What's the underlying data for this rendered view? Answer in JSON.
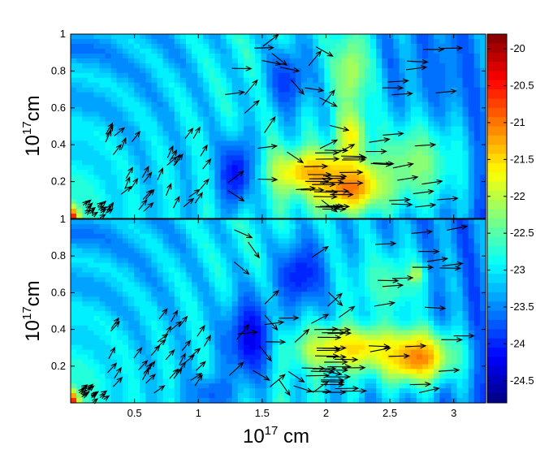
{
  "chart_data": {
    "type": "heatmap",
    "panels": [
      {
        "name": "top",
        "xlim": [
          0,
          3.25
        ],
        "ylim": [
          0,
          1
        ],
        "ylabel": "10^17cm",
        "ytick_labels": [
          "0.2",
          "0.4",
          "0.6",
          "0.8",
          "1"
        ],
        "yticks": [
          0.2,
          0.4,
          0.6,
          0.8,
          1.0
        ],
        "hotspots": [
          {
            "x": 2.2,
            "y": 0.18,
            "peak": -20.6,
            "sx": 0.28,
            "sy": 0.14
          },
          {
            "x": 1.9,
            "y": 0.25,
            "peak": -21.2,
            "sx": 0.35,
            "sy": 0.12
          },
          {
            "x": 2.2,
            "y": 0.45,
            "peak": -21.5,
            "sx": 0.12,
            "sy": 0.15
          },
          {
            "x": 2.7,
            "y": 0.3,
            "peak": -22.2,
            "sx": 0.35,
            "sy": 0.25
          },
          {
            "x": 2.2,
            "y": 0.8,
            "peak": -22.0,
            "sx": 0.15,
            "sy": 0.25
          }
        ],
        "cold_spots": [
          {
            "x": 1.3,
            "y": 0.25,
            "depth": -24.3,
            "sx": 0.15,
            "sy": 0.2
          },
          {
            "x": 1.7,
            "y": 0.75,
            "depth": -24.0,
            "sx": 0.18,
            "sy": 0.2
          },
          {
            "x": 2.9,
            "y": 0.8,
            "depth": -23.6,
            "sx": 0.2,
            "sy": 0.2
          }
        ]
      },
      {
        "name": "bottom",
        "xlim": [
          0,
          3.25
        ],
        "ylim": [
          0,
          1
        ],
        "ylabel": "10^17cm",
        "ytick_labels": [
          "0.2",
          "0.4",
          "0.6",
          "0.8",
          "1"
        ],
        "yticks": [
          0.2,
          0.4,
          0.6,
          0.8,
          1.0
        ],
        "hotspots": [
          {
            "x": 2.7,
            "y": 0.25,
            "peak": -20.8,
            "sx": 0.3,
            "sy": 0.15
          },
          {
            "x": 2.2,
            "y": 0.3,
            "peak": -21.4,
            "sx": 0.45,
            "sy": 0.12
          },
          {
            "x": 2.7,
            "y": 0.7,
            "peak": -21.3,
            "sx": 0.06,
            "sy": 0.05
          },
          {
            "x": 2.5,
            "y": 0.65,
            "peak": -22.5,
            "sx": 0.3,
            "sy": 0.2
          }
        ],
        "cold_spots": [
          {
            "x": 1.4,
            "y": 0.35,
            "depth": -24.4,
            "sx": 0.2,
            "sy": 0.25
          },
          {
            "x": 1.8,
            "y": 0.7,
            "depth": -24.2,
            "sx": 0.2,
            "sy": 0.2
          },
          {
            "x": 1.1,
            "y": 0.05,
            "depth": -23.8,
            "sx": 0.2,
            "sy": 0.1
          }
        ]
      }
    ],
    "xlabel": "10^17 cm",
    "xticks": [
      0.5,
      1,
      1.5,
      2,
      2.5,
      3
    ],
    "xtick_labels": [
      "0.5",
      "1",
      "1.5",
      "2",
      "2.5",
      "3"
    ],
    "colorbar": {
      "range": [
        -24.8,
        -19.8
      ],
      "ticks": [
        -20,
        -20.5,
        -21,
        -21.5,
        -22,
        -22.5,
        -23,
        -23.5,
        -24,
        -24.5
      ],
      "tick_labels": [
        "-20",
        "-20.5",
        "-21",
        "-21.5",
        "-22",
        "-22.5",
        "-23",
        "-23.5",
        "-24",
        "-24.5"
      ],
      "colormap": "jet"
    },
    "quiver": true
  }
}
